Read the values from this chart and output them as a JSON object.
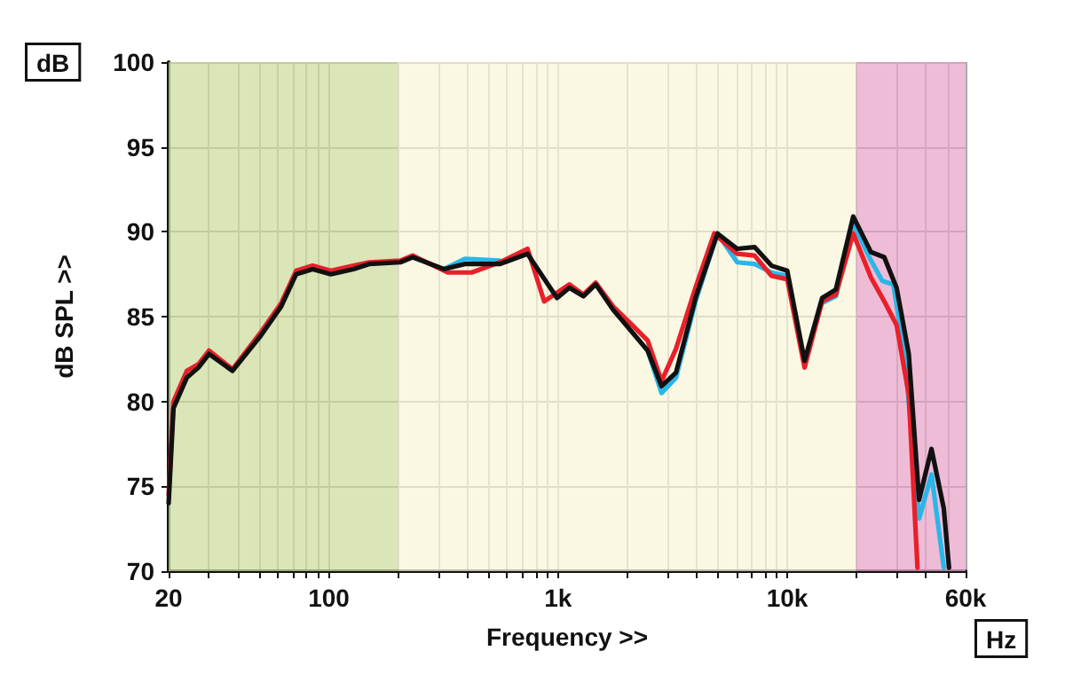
{
  "chart_data": {
    "type": "line",
    "xlabel": "Frequency >>",
    "ylabel": "dB SPL >>",
    "annotations": [
      "dB",
      "Hz"
    ],
    "log": "x",
    "grid": true,
    "marker": "none",
    "line_style": "solid",
    "xlim": [
      20,
      60000
    ],
    "ylim": [
      70,
      100
    ],
    "xticks": [
      {
        "value": 20,
        "label": "20"
      },
      {
        "value": 30,
        "label": null
      },
      {
        "value": 40,
        "label": null
      },
      {
        "value": 50,
        "label": null
      },
      {
        "value": 60,
        "label": null
      },
      {
        "value": 70,
        "label": null
      },
      {
        "value": 80,
        "label": null
      },
      {
        "value": 90,
        "label": null
      },
      {
        "value": 100,
        "label": "100"
      },
      {
        "value": 200,
        "label": null
      },
      {
        "value": 300,
        "label": null
      },
      {
        "value": 400,
        "label": null
      },
      {
        "value": 500,
        "label": null
      },
      {
        "value": 600,
        "label": null
      },
      {
        "value": 700,
        "label": null
      },
      {
        "value": 800,
        "label": null
      },
      {
        "value": 900,
        "label": null
      },
      {
        "value": 1000,
        "label": "1k"
      },
      {
        "value": 2000,
        "label": null
      },
      {
        "value": 3000,
        "label": null
      },
      {
        "value": 4000,
        "label": null
      },
      {
        "value": 5000,
        "label": null
      },
      {
        "value": 6000,
        "label": null
      },
      {
        "value": 7000,
        "label": null
      },
      {
        "value": 8000,
        "label": null
      },
      {
        "value": 9000,
        "label": null
      },
      {
        "value": 10000,
        "label": "10k"
      },
      {
        "value": 20000,
        "label": null
      },
      {
        "value": 30000,
        "label": null
      },
      {
        "value": 40000,
        "label": null
      },
      {
        "value": 50000,
        "label": null
      },
      {
        "value": 60000,
        "label": "60k"
      }
    ],
    "yticks": [
      70,
      75,
      80,
      85,
      90,
      95,
      100
    ],
    "bands": [
      {
        "axis": "x",
        "from": 20,
        "to": 200,
        "color": "#cddca0"
      },
      {
        "axis": "x",
        "from": 200,
        "to": 20000,
        "color": "#f8f5d8"
      },
      {
        "axis": "x",
        "from": 20000,
        "to": 60000,
        "color": "#eaa6ca"
      }
    ],
    "series": [
      {
        "color": "#29b6e8",
        "x": [
          318,
          392,
          556,
          736,
          990,
          1120,
          1290,
          1460,
          1740,
          2070,
          2460,
          2830,
          3270,
          4000,
          4960,
          6050,
          7200,
          8540,
          10000,
          11900,
          14200,
          16300,
          19400,
          23200,
          26000,
          29000,
          32500,
          37600,
          42600,
          48200
        ],
        "values": [
          87.8,
          88.4,
          88.3,
          null,
          null,
          null,
          null,
          null,
          null,
          null,
          83.0,
          80.5,
          81.4,
          86.0,
          89.9,
          88.2,
          88.1,
          87.6,
          87.4,
          null,
          85.8,
          86.2,
          90.5,
          88.3,
          87.1,
          86.9,
          82.8,
          73.1,
          75.7,
          70.2
        ]
      },
      {
        "color": "#e8202a",
        "x": [
          20,
          21,
          24,
          27,
          30,
          38,
          50,
          62,
          72,
          85,
          102,
          128,
          150,
          205,
          232,
          330,
          420,
          556,
          736,
          870,
          1120,
          1290,
          1460,
          1740,
          2070,
          2460,
          2830,
          3270,
          4000,
          4800,
          6050,
          7200,
          8540,
          10000,
          11900,
          14200,
          16300,
          19400,
          23200,
          26500,
          30000,
          33900,
          37000
        ],
        "values": [
          74.5,
          80.0,
          81.8,
          82.2,
          83.0,
          81.9,
          84.0,
          85.8,
          87.7,
          88.0,
          87.7,
          88.0,
          88.2,
          88.3,
          88.6,
          87.6,
          87.6,
          88.2,
          89.0,
          85.9,
          86.9,
          86.3,
          87.0,
          85.6,
          84.6,
          83.6,
          81.2,
          83.1,
          86.8,
          89.9,
          88.7,
          88.6,
          87.4,
          87.2,
          82.0,
          85.9,
          86.3,
          89.9,
          87.3,
          85.9,
          84.5,
          80.4,
          70.2
        ]
      },
      {
        "color": "#111111",
        "x": [
          20,
          21,
          24,
          27,
          30,
          38,
          50,
          62,
          72,
          85,
          102,
          128,
          150,
          205,
          232,
          318,
          392,
          556,
          736,
          990,
          1120,
          1290,
          1460,
          1740,
          2070,
          2460,
          2830,
          3270,
          4000,
          4960,
          6050,
          7200,
          8540,
          10000,
          11900,
          14200,
          16300,
          19400,
          23200,
          26500,
          30000,
          33900,
          37600,
          42600,
          48200,
          50800
        ],
        "values": [
          74,
          79.6,
          81.4,
          82.0,
          82.8,
          81.8,
          83.8,
          85.6,
          87.5,
          87.8,
          87.5,
          87.8,
          88.1,
          88.2,
          88.5,
          87.8,
          88.1,
          88.1,
          88.7,
          86.1,
          86.7,
          86.2,
          86.9,
          85.4,
          84.2,
          83.0,
          80.9,
          81.7,
          86.2,
          89.9,
          89.0,
          89.1,
          88.0,
          87.7,
          82.4,
          86.1,
          86.6,
          90.9,
          88.8,
          88.5,
          86.7,
          82.8,
          74.2,
          77.2,
          73.7,
          70.2
        ]
      }
    ]
  }
}
